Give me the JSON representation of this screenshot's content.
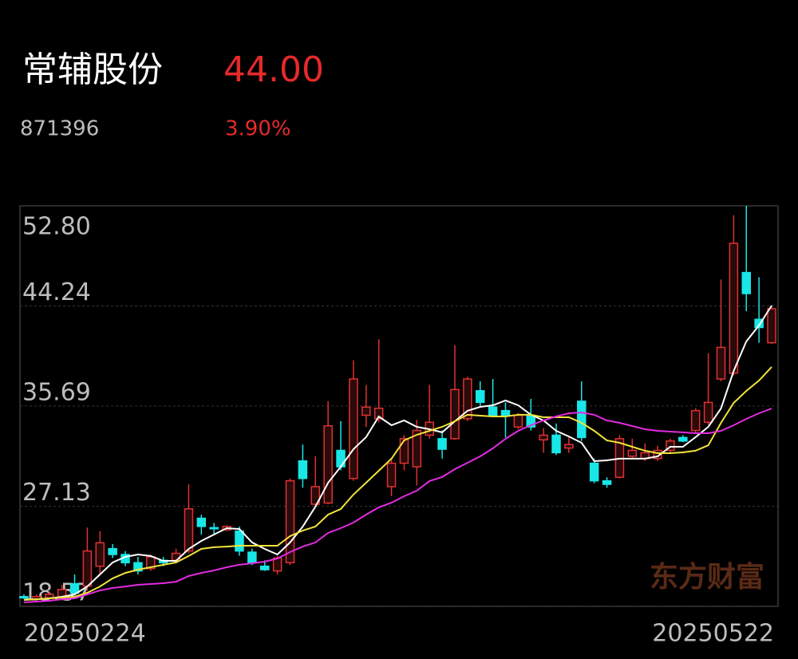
{
  "header": {
    "name": "常辅股份",
    "price": "44.00",
    "code": "871396",
    "change": "3.90%"
  },
  "watermark": "东方财富",
  "chart_data": {
    "type": "candlestick",
    "categories": [
      "20250224",
      null,
      null,
      null,
      null,
      null,
      null,
      null,
      null,
      null,
      null,
      null,
      null,
      null,
      null,
      null,
      null,
      null,
      null,
      null,
      null,
      null,
      null,
      null,
      null,
      null,
      null,
      null,
      null,
      null,
      null,
      null,
      null,
      null,
      null,
      null,
      null,
      null,
      null,
      null,
      null,
      null,
      null,
      null,
      null,
      null,
      null,
      null,
      null,
      null,
      null,
      null,
      null,
      null,
      null,
      null,
      null,
      null,
      null,
      "20250522"
    ],
    "open": [
      19.4,
      19.2,
      19.3,
      19.3,
      20.5,
      20.3,
      22.0,
      23.5,
      23.0,
      22.3,
      21.8,
      22.5,
      22.5,
      23.3,
      26.1,
      25.3,
      25.1,
      25.0,
      23.2,
      22.0,
      21.6,
      22.3,
      31.0,
      27.3,
      27.4,
      31.9,
      29.5,
      34.9,
      34.6,
      28.8,
      30.8,
      30.5,
      33.2,
      32.9,
      32.9,
      34.6,
      37.0,
      35.6,
      35.3,
      33.9,
      34.9,
      32.8,
      33.2,
      32.1,
      36.1,
      30.8,
      29.3,
      29.6,
      31.4,
      31.2,
      31.2,
      31.9,
      33.0,
      33.6,
      34.3,
      38.0,
      38.5,
      47.1,
      43.1,
      41.1
    ],
    "high": [
      19.6,
      19.6,
      19.8,
      20.4,
      21.3,
      25.3,
      25.0,
      23.9,
      23.3,
      22.8,
      23.0,
      22.8,
      23.5,
      29.0,
      26.4,
      25.7,
      25.5,
      25.4,
      23.5,
      22.5,
      22.9,
      29.5,
      32.4,
      31.4,
      36.1,
      34.4,
      39.6,
      37.5,
      41.4,
      31.2,
      33.2,
      34.5,
      37.5,
      33.6,
      40.9,
      38.2,
      37.8,
      38.0,
      36.0,
      35.1,
      36.3,
      33.8,
      34.2,
      33.0,
      37.8,
      31.2,
      29.6,
      33.2,
      32.9,
      32.5,
      32.3,
      32.9,
      33.2,
      35.5,
      40.2,
      46.5,
      52.0,
      52.8,
      46.7,
      44.3
    ],
    "low": [
      19.2,
      19.0,
      19.2,
      19.1,
      19.5,
      19.9,
      21.3,
      22.7,
      22.0,
      21.3,
      21.6,
      22.0,
      22.3,
      23.1,
      24.7,
      24.7,
      25.0,
      22.9,
      22.1,
      21.6,
      21.3,
      22.1,
      28.7,
      27.1,
      27.3,
      30.2,
      29.3,
      33.9,
      34.3,
      28.0,
      30.2,
      28.9,
      32.9,
      31.2,
      32.8,
      34.4,
      35.6,
      34.8,
      33.0,
      33.7,
      33.6,
      31.7,
      31.5,
      31.7,
      32.7,
      29.1,
      28.7,
      29.5,
      31.2,
      31.0,
      31.0,
      31.7,
      32.6,
      33.4,
      34.1,
      37.8,
      38.3,
      43.8,
      41.1,
      41.0
    ],
    "close": [
      19.3,
      19.4,
      19.6,
      20.0,
      19.7,
      23.3,
      24.0,
      23.0,
      22.3,
      21.6,
      22.8,
      22.3,
      23.1,
      26.9,
      25.4,
      25.2,
      25.4,
      23.3,
      22.3,
      21.7,
      22.7,
      29.3,
      29.5,
      28.8,
      34.0,
      30.5,
      38.0,
      35.6,
      35.5,
      30.8,
      32.9,
      33.6,
      34.3,
      32.0,
      37.1,
      38.0,
      36.0,
      34.9,
      34.9,
      34.9,
      33.9,
      33.2,
      31.7,
      32.4,
      33.0,
      29.3,
      29.0,
      32.9,
      31.9,
      31.7,
      31.9,
      32.7,
      32.7,
      35.3,
      36.0,
      40.7,
      49.6,
      45.3,
      42.4,
      44.0
    ],
    "up_color": "#e03131",
    "down_color": "#19e6e6",
    "series": [
      {
        "color": "#ffffff",
        "values": [
          19.12,
          19.18,
          19.25,
          19.39,
          19.59,
          20.27,
          21.3,
          22.32,
          22.8,
          23.0,
          22.87,
          22.46,
          22.46,
          23.48,
          24.16,
          24.71,
          25.25,
          25.18,
          24.03,
          23.48,
          23.0,
          24.03,
          25.39,
          27.09,
          29.14,
          30.5,
          32.0,
          33.03,
          34.8,
          34.05,
          34.46,
          33.91,
          33.71,
          33.44,
          34.39,
          35.28,
          35.62,
          35.75,
          36.16,
          35.75,
          34.94,
          34.46,
          33.57,
          33.09,
          32.55,
          30.98,
          31.05,
          31.19,
          31.19,
          31.19,
          31.39,
          32.21,
          32.21,
          33.03,
          33.91,
          35.48,
          38.69,
          41.21,
          42.58,
          44.28
        ]
      },
      {
        "color": "#f2e33a",
        "values": [
          19.12,
          19.18,
          19.25,
          19.32,
          19.39,
          19.73,
          20.27,
          20.96,
          21.43,
          21.71,
          21.91,
          22.12,
          22.32,
          22.87,
          23.48,
          23.62,
          23.68,
          23.75,
          23.75,
          23.75,
          23.75,
          24.57,
          25.05,
          25.39,
          26.41,
          26.89,
          28.12,
          29.14,
          30.16,
          31.19,
          32.75,
          33.23,
          33.57,
          33.91,
          34.39,
          34.94,
          34.87,
          34.8,
          34.8,
          34.94,
          34.94,
          34.73,
          34.73,
          34.73,
          34.25,
          33.57,
          32.75,
          32.55,
          32.21,
          31.87,
          31.66,
          31.66,
          31.73,
          31.87,
          32.34,
          34.25,
          35.96,
          36.98,
          37.87,
          39.03
        ]
      },
      {
        "color": "#e22be0",
        "values": [
          18.91,
          18.98,
          19.05,
          19.18,
          19.25,
          19.59,
          19.93,
          20.14,
          20.27,
          20.41,
          20.48,
          20.55,
          20.68,
          21.16,
          21.43,
          21.64,
          21.91,
          22.12,
          22.25,
          22.39,
          22.66,
          23.21,
          23.68,
          24.03,
          24.84,
          25.25,
          25.73,
          26.41,
          27.03,
          27.43,
          27.98,
          28.46,
          29.28,
          29.62,
          30.3,
          30.84,
          31.39,
          32.07,
          32.89,
          33.57,
          34.05,
          34.46,
          34.8,
          35.07,
          35.14,
          34.94,
          34.46,
          34.25,
          33.98,
          33.71,
          33.57,
          33.5,
          33.44,
          33.37,
          33.37,
          33.57,
          34.05,
          34.59,
          35.07,
          35.48
        ]
      }
    ],
    "ylim": [
      18.57,
      52.8
    ],
    "yticks": [
      {
        "value": 52.8,
        "label": "52.80"
      },
      44.24,
      35.69,
      27.13,
      18.57
    ],
    "grid": true
  }
}
